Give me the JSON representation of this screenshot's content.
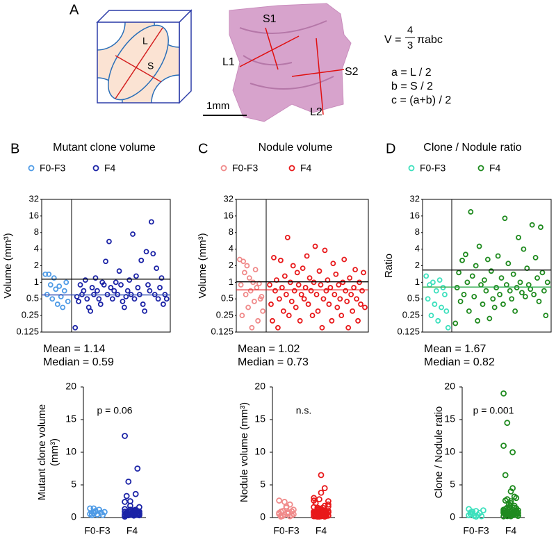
{
  "panel_a": {
    "label": "A",
    "cube_labels": [
      "L",
      "S"
    ],
    "image_labels": [
      "S1",
      "L1",
      "S2",
      "L2"
    ],
    "scale_bar": "1mm",
    "formula": {
      "lhs": "V =",
      "numerator": "4",
      "denominator": "3",
      "rhs": "πabc"
    },
    "definitions": [
      "a = L / 2",
      "b = S / 2",
      "c = (a+b) / 2"
    ]
  },
  "chart_data": [
    {
      "type": "scatter",
      "panel": "B",
      "title": "Mutant clone volume",
      "ylabel": "Volume (mm³)",
      "log_scale": true,
      "ylim": [
        0.125,
        32
      ],
      "yticks": [
        0.125,
        0.25,
        0.5,
        1,
        2,
        4,
        8,
        16,
        32
      ],
      "series": [
        {
          "name": "F0-F3",
          "color": "#4f9be6",
          "values": [
            1.4,
            0.6,
            1.4,
            0.9,
            0.5,
            1.2,
            0.75,
            0.4,
            0.85,
            0.55,
            0.35,
            0.7,
            1.0,
            0.45
          ]
        },
        {
          "name": "F4",
          "color": "#1b23a6",
          "values": [
            0.15,
            0.55,
            0.45,
            0.9,
            0.6,
            0.7,
            1.1,
            0.5,
            0.35,
            0.3,
            0.8,
            0.6,
            1.2,
            0.7,
            0.5,
            0.4,
            1.0,
            0.9,
            2.4,
            0.6,
            5.5,
            0.8,
            0.5,
            0.7,
            1.0,
            0.6,
            1.6,
            0.9,
            0.45,
            0.35,
            0.55,
            0.7,
            1.1,
            0.6,
            7.5,
            0.5,
            1.3,
            0.8,
            0.6,
            2.5,
            0.4,
            0.3,
            3.6,
            0.9,
            0.7,
            12.5,
            3.3,
            0.6,
            1.8,
            0.5,
            0.8,
            1.2,
            0.4,
            0.6,
            0.5
          ]
        }
      ],
      "mean": {
        "value": 1.14,
        "label": "Mean = 1.14",
        "color": "#000000"
      },
      "median": {
        "value": 0.59,
        "label": "Median = 0.59",
        "color": "#2a45b0"
      },
      "comparison": {
        "type": "strip",
        "ylabel_lines": [
          "Mutant clone volume",
          "(mm³)"
        ],
        "ylim": [
          0,
          20
        ],
        "yticks": [
          0,
          5,
          10,
          15,
          20
        ],
        "categories": [
          "F0-F3",
          "F4"
        ],
        "annotation": "p = 0.06"
      }
    },
    {
      "type": "scatter",
      "panel": "C",
      "title": "Nodule volume",
      "ylabel": "Volume (mm³)",
      "log_scale": true,
      "ylim": [
        0.125,
        32
      ],
      "yticks": [
        0.125,
        0.25,
        0.5,
        1,
        2,
        4,
        8,
        16,
        32
      ],
      "series": [
        {
          "name": "F0-F3",
          "color": "#f08a8a",
          "values": [
            2.6,
            0.9,
            0.25,
            2.4,
            1.5,
            0.6,
            2.0,
            0.35,
            1.2,
            0.7,
            0.15,
            1.0,
            0.45,
            1.7,
            0.8,
            0.2,
            0.95,
            0.5,
            0.55,
            0.3
          ]
        },
        {
          "name": "F4",
          "color": "#e8191b",
          "values": [
            0.9,
            0.4,
            0.2,
            2.8,
            0.7,
            1.1,
            0.15,
            0.5,
            2.5,
            0.8,
            0.3,
            1.3,
            0.6,
            6.5,
            0.25,
            1.0,
            0.45,
            2.0,
            0.7,
            0.35,
            1.5,
            0.9,
            0.2,
            0.6,
            1.8,
            0.5,
            0.8,
            3.0,
            0.4,
            1.2,
            0.7,
            0.25,
            1.0,
            4.5,
            0.6,
            0.3,
            1.6,
            0.9,
            0.15,
            0.5,
            3.8,
            0.7,
            1.1,
            0.4,
            0.8,
            0.2,
            2.2,
            0.6,
            1.4,
            0.35,
            0.9,
            0.5,
            0.25,
            1.0,
            2.6,
            0.7,
            0.45,
            0.15,
            1.2,
            0.6,
            0.3,
            0.8,
            1.7,
            0.5,
            0.2,
            1.0,
            0.4,
            0.7,
            1.5,
            0.35
          ]
        }
      ],
      "mean": {
        "value": 1.02,
        "label": "Mean = 1.02",
        "color": "#000000"
      },
      "median": {
        "value": 0.73,
        "label": "Median = 0.73",
        "color": "#e8191b"
      },
      "comparison": {
        "type": "strip",
        "ylabel_lines": [
          "Nodule volume (mm³)"
        ],
        "ylim": [
          0,
          20
        ],
        "yticks": [
          0,
          5,
          10,
          15,
          20
        ],
        "categories": [
          "F0-F3",
          "F4"
        ],
        "annotation": "n.s."
      }
    },
    {
      "type": "scatter",
      "panel": "D",
      "title": "Clone / Nodule ratio",
      "ylabel": "Ratio",
      "log_scale": true,
      "ylim": [
        0.125,
        32
      ],
      "yticks": [
        0.125,
        0.25,
        0.5,
        1,
        2,
        4,
        8,
        16,
        32
      ],
      "series": [
        {
          "name": "F0-F3",
          "color": "#3de0bd",
          "values": [
            1.3,
            0.5,
            0.9,
            0.25,
            1.0,
            0.4,
            0.7,
            0.2,
            1.1,
            0.35,
            0.8,
            0.6,
            0.3,
            0.15
          ]
        },
        {
          "name": "F4",
          "color": "#1e8a1e",
          "values": [
            0.18,
            0.8,
            1.5,
            0.45,
            2.5,
            0.6,
            3.2,
            1.0,
            0.3,
            19,
            1.3,
            0.55,
            2.0,
            0.2,
            4.5,
            0.9,
            0.4,
            1.1,
            0.7,
            2.6,
            0.22,
            1.6,
            0.5,
            0.35,
            0.8,
            3.0,
            0.6,
            1.2,
            0.4,
            14.5,
            0.9,
            2.2,
            0.7,
            0.5,
            1.4,
            0.3,
            0.8,
            6.5,
            1.0,
            0.65,
            4.0,
            0.55,
            1.8,
            0.9,
            0.75,
            11.0,
            0.6,
            2.8,
            1.2,
            0.45,
            10.0,
            1.5,
            0.7,
            0.25,
            1.0
          ]
        }
      ],
      "mean": {
        "value": 1.67,
        "label": "Mean = 1.67",
        "color": "#000000"
      },
      "median": {
        "value": 0.82,
        "label": "Median = 0.82",
        "color": "#2aa84a"
      },
      "comparison": {
        "type": "strip",
        "ylabel_lines": [
          "Clone / Nodule ratio"
        ],
        "ylim": [
          0,
          20
        ],
        "yticks": [
          0,
          5,
          10,
          15,
          20
        ],
        "categories": [
          "F0-F3",
          "F4"
        ],
        "annotation": "p = 0.001"
      }
    }
  ]
}
